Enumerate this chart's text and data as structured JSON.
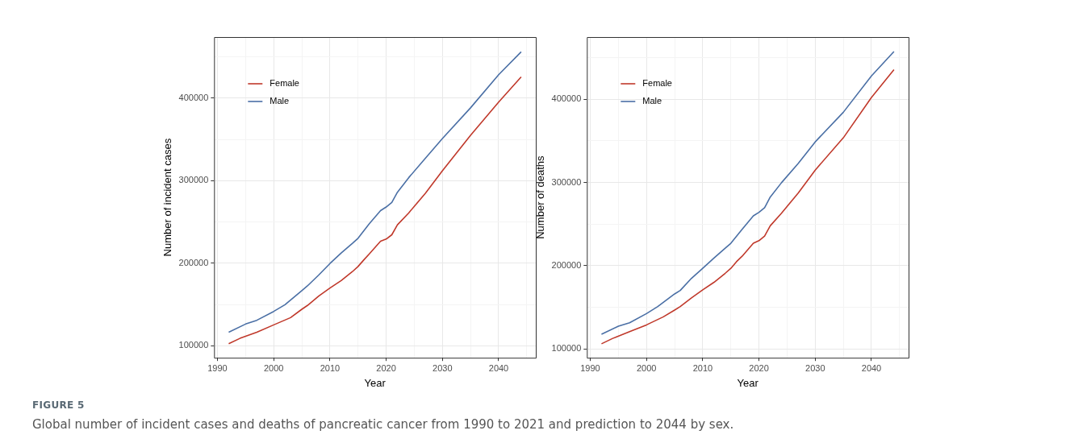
{
  "chart_data": [
    {
      "type": "line",
      "xlabel": "Year",
      "ylabel": "Number of incident cases",
      "legend": "top left",
      "grid": true,
      "line_style": "solid",
      "marker": "none",
      "xlim": [
        1989.4,
        2046.6
      ],
      "xticks": [
        1990,
        {
          "value": 1995,
          "label": null
        },
        2000,
        {
          "value": 2005,
          "label": null
        },
        2010,
        {
          "value": 2015,
          "label": null
        },
        2020,
        {
          "value": 2025,
          "label": null
        },
        2030,
        {
          "value": 2035,
          "label": null
        },
        2040,
        {
          "value": 2045,
          "label": null
        }
      ],
      "ylim": [
        85600,
        473900
      ],
      "yticks": [
        100000,
        {
          "value": 150000,
          "label": null
        },
        200000,
        {
          "value": 250000,
          "label": null
        },
        300000,
        {
          "value": 350000,
          "label": null
        },
        400000,
        {
          "value": 450000,
          "label": null
        }
      ],
      "series": [
        {
          "name": "Female",
          "color": "#c0392b",
          "x": [
            1992,
            1994,
            1997,
            2000,
            2003,
            2005,
            2006,
            2008,
            2010,
            2012,
            2014,
            2015,
            2016,
            2017,
            2019,
            2020,
            2021,
            2022,
            2024,
            2027,
            2030,
            2035,
            2040,
            2044
          ],
          "values": [
            102600,
            109100,
            116600,
            125400,
            134200,
            144300,
            148900,
            160300,
            170000,
            179100,
            189900,
            196100,
            203900,
            211400,
            226700,
            229300,
            234500,
            246600,
            260900,
            285000,
            312000,
            355000,
            395100,
            425700
          ]
        },
        {
          "name": "Male",
          "color": "#4a6fa5",
          "x": [
            1992,
            1995,
            1997,
            2000,
            2002,
            2005,
            2006,
            2008,
            2010,
            2012,
            2014,
            2015,
            2017,
            2019,
            2020,
            2021,
            2022,
            2024,
            2027,
            2030,
            2035,
            2040,
            2044
          ],
          "values": [
            116600,
            126400,
            131000,
            141700,
            149800,
            166800,
            172600,
            185700,
            199700,
            212400,
            224100,
            230300,
            247900,
            263800,
            268100,
            273600,
            286000,
            303600,
            327300,
            351100,
            388200,
            428300,
            456000
          ]
        }
      ],
      "annotations": [
        "FIGURE 5",
        "Global number of incident cases and deaths of pancreatic cancer from 1990 to 2021 and prediction to 2044 by sex."
      ]
    },
    {
      "type": "line",
      "xlabel": "Year",
      "ylabel": "Number of deaths",
      "legend": "top left",
      "grid": true,
      "line_style": "solid",
      "marker": "none",
      "xlim": [
        1989.4,
        2046.6
      ],
      "xticks": [
        1990,
        {
          "value": 1995,
          "label": null
        },
        2000,
        {
          "value": 2005,
          "label": null
        },
        2010,
        {
          "value": 2015,
          "label": null
        },
        2020,
        {
          "value": 2025,
          "label": null
        },
        2030,
        {
          "value": 2035,
          "label": null
        },
        2040,
        {
          "value": 2045,
          "label": null
        }
      ],
      "ylim": [
        89300,
        474800
      ],
      "yticks": [
        100000,
        {
          "value": 150000,
          "label": null
        },
        200000,
        {
          "value": 250000,
          "label": null
        },
        300000,
        {
          "value": 350000,
          "label": null
        },
        400000,
        {
          "value": 450000,
          "label": null
        }
      ],
      "series": [
        {
          "name": "Female",
          "color": "#c0392b",
          "x": [
            1992,
            1994,
            1997,
            2000,
            2003,
            2005,
            2006,
            2008,
            2010,
            2012,
            2014,
            2015,
            2016,
            2017,
            2019,
            2020,
            2021,
            2022,
            2024,
            2027,
            2030,
            2035,
            2040,
            2044
          ],
          "values": [
            106100,
            112600,
            120700,
            128800,
            138500,
            146600,
            150800,
            161200,
            170900,
            180000,
            190900,
            196800,
            204800,
            211300,
            226900,
            230100,
            235600,
            247900,
            263100,
            287400,
            314900,
            353700,
            402200,
            435600
          ]
        },
        {
          "name": "Male",
          "color": "#4a6fa5",
          "x": [
            1992,
            1995,
            1997,
            2000,
            2002,
            2005,
            2006,
            2008,
            2010,
            2012,
            2014,
            2015,
            2017,
            2019,
            2020,
            2021,
            2022,
            2024,
            2027,
            2030,
            2035,
            2040,
            2044
          ],
          "values": [
            117500,
            127200,
            131400,
            142400,
            150800,
            166000,
            170200,
            184800,
            196800,
            209100,
            221000,
            226900,
            243700,
            259900,
            264100,
            269600,
            282500,
            299700,
            323000,
            348800,
            384400,
            428100,
            457300
          ]
        }
      ]
    }
  ]
}
